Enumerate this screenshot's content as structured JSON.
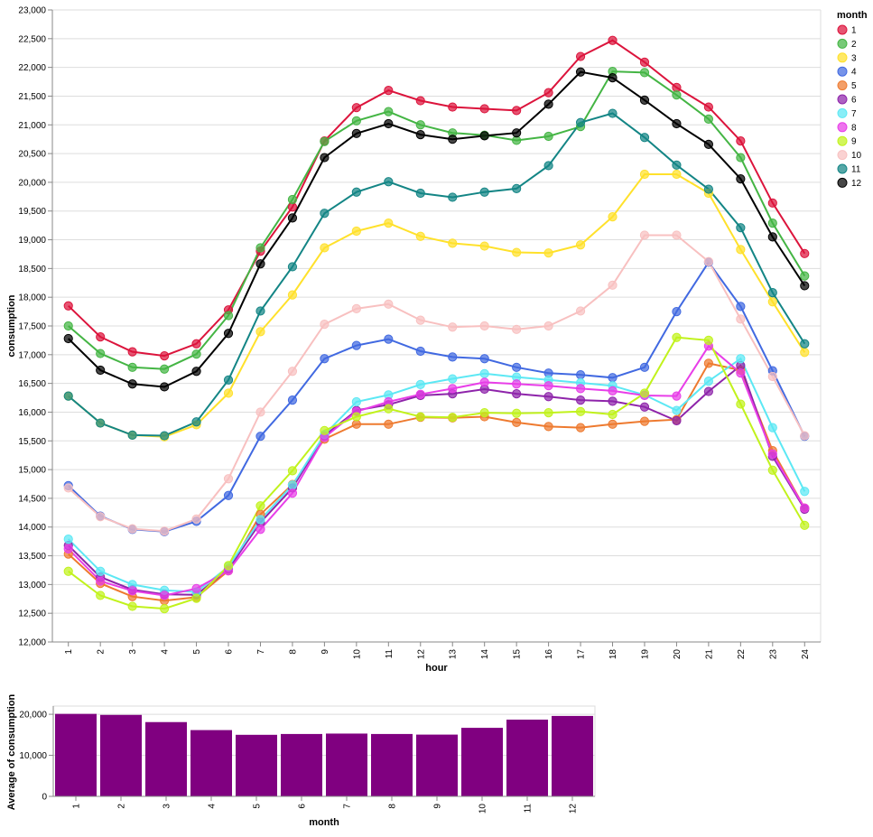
{
  "colors": {
    "bar": "#800080",
    "grid": "#dddddd",
    "axis": "#888888",
    "series": [
      "#dc143c",
      "#44b544",
      "#ffe12b",
      "#4169e1",
      "#ee7a2f",
      "#8e24aa",
      "#5ce8f4",
      "#e83ee8",
      "#c1f21c",
      "#f8c0c0",
      "#138585",
      "#000000"
    ]
  },
  "chart_data": [
    {
      "type": "line",
      "xlabel": "hour",
      "ylabel": "consumption",
      "x": [
        1,
        2,
        3,
        4,
        5,
        6,
        7,
        8,
        9,
        10,
        11,
        12,
        13,
        14,
        15,
        16,
        17,
        18,
        19,
        20,
        21,
        22,
        23,
        24
      ],
      "ylim": [
        12000,
        23000
      ],
      "yticks": [
        12000,
        12500,
        13000,
        13500,
        14000,
        14500,
        15000,
        15500,
        16000,
        16500,
        17000,
        17500,
        18000,
        18500,
        19000,
        19500,
        20000,
        20500,
        21000,
        21500,
        22000,
        22500,
        23000
      ],
      "grid": true,
      "markers": "circle",
      "legend": {
        "title": "month",
        "position": "right"
      },
      "series": [
        {
          "name": "1",
          "values": [
            17850,
            17310,
            17050,
            16980,
            17190,
            17780,
            18800,
            19570,
            20720,
            21300,
            21600,
            21420,
            21310,
            21280,
            21250,
            21560,
            22190,
            22470,
            22090,
            21650,
            21310,
            20720,
            19640,
            18760
          ]
        },
        {
          "name": "2",
          "values": [
            17500,
            17020,
            16780,
            16750,
            17010,
            17680,
            18860,
            19700,
            20710,
            21070,
            21230,
            21000,
            20860,
            20820,
            20730,
            20800,
            20970,
            21930,
            21910,
            21520,
            21100,
            20430,
            19290,
            18370
          ]
        },
        {
          "name": "3",
          "values": [
            16280,
            15810,
            15600,
            15570,
            15780,
            16330,
            17400,
            18040,
            18860,
            19150,
            19290,
            19060,
            18940,
            18890,
            18780,
            18770,
            18910,
            19400,
            20140,
            20140,
            19810,
            18830,
            17920,
            17040
          ]
        },
        {
          "name": "4",
          "values": [
            14720,
            14190,
            13960,
            13920,
            14100,
            14550,
            15580,
            16210,
            16930,
            17160,
            17270,
            17060,
            16960,
            16930,
            16780,
            16680,
            16650,
            16600,
            16780,
            17750,
            18610,
            17840,
            16720,
            15580
          ]
        },
        {
          "name": "5",
          "values": [
            13530,
            13020,
            12790,
            12720,
            12780,
            13240,
            14220,
            14740,
            15530,
            15790,
            15790,
            15910,
            15900,
            15920,
            15820,
            15750,
            15730,
            15790,
            15840,
            15870,
            16850,
            16730,
            15330,
            14330
          ]
        },
        {
          "name": "6",
          "values": [
            13680,
            13130,
            12910,
            12830,
            12820,
            13270,
            14080,
            14680,
            15590,
            16030,
            16130,
            16290,
            16320,
            16400,
            16320,
            16270,
            16210,
            16190,
            16090,
            15850,
            16360,
            16810,
            15230,
            14310
          ]
        },
        {
          "name": "7",
          "values": [
            13790,
            13230,
            13000,
            12900,
            12870,
            13310,
            14130,
            14730,
            15610,
            16180,
            16300,
            16480,
            16580,
            16670,
            16610,
            16560,
            16510,
            16460,
            16300,
            16030,
            16540,
            16930,
            15730,
            14620
          ]
        },
        {
          "name": "8",
          "values": [
            13620,
            13060,
            12890,
            12810,
            12930,
            13240,
            13960,
            14590,
            15560,
            16010,
            16180,
            16310,
            16410,
            16520,
            16490,
            16460,
            16410,
            16370,
            16290,
            16280,
            17150,
            16680,
            15270,
            14330
          ]
        },
        {
          "name": "9",
          "values": [
            13230,
            12810,
            12620,
            12580,
            12760,
            13330,
            14370,
            14980,
            15680,
            15920,
            16060,
            15920,
            15910,
            15990,
            15980,
            15990,
            16010,
            15960,
            16330,
            17300,
            17250,
            16140,
            14990,
            14030
          ]
        },
        {
          "name": "10",
          "values": [
            14680,
            14180,
            13970,
            13930,
            14140,
            14840,
            16000,
            16710,
            17530,
            17800,
            17880,
            17600,
            17480,
            17500,
            17440,
            17500,
            17760,
            18210,
            19080,
            19080,
            18620,
            17620,
            16620,
            15590
          ]
        },
        {
          "name": "11",
          "values": [
            16280,
            15810,
            15600,
            15590,
            15830,
            16560,
            17760,
            18530,
            19460,
            19830,
            20010,
            19810,
            19740,
            19830,
            19890,
            20290,
            21040,
            21200,
            20780,
            20300,
            19880,
            19210,
            18080,
            17190
          ]
        },
        {
          "name": "12",
          "values": [
            17280,
            16730,
            16490,
            16440,
            16710,
            17370,
            18580,
            19380,
            20430,
            20850,
            21020,
            20830,
            20750,
            20810,
            20860,
            21360,
            21920,
            21820,
            21430,
            21020,
            20660,
            20060,
            19050,
            18200
          ]
        }
      ]
    },
    {
      "type": "bar",
      "xlabel": "month",
      "ylabel": "Average of consumption",
      "categories": [
        "1",
        "2",
        "3",
        "4",
        "5",
        "6",
        "7",
        "8",
        "9",
        "10",
        "11",
        "12"
      ],
      "values": [
        20100,
        19850,
        18100,
        16150,
        15000,
        15200,
        15300,
        15200,
        15050,
        16700,
        18700,
        19600
      ],
      "ylim": [
        0,
        22000
      ],
      "yticks": [
        0,
        10000,
        20000
      ],
      "grid": true
    }
  ]
}
